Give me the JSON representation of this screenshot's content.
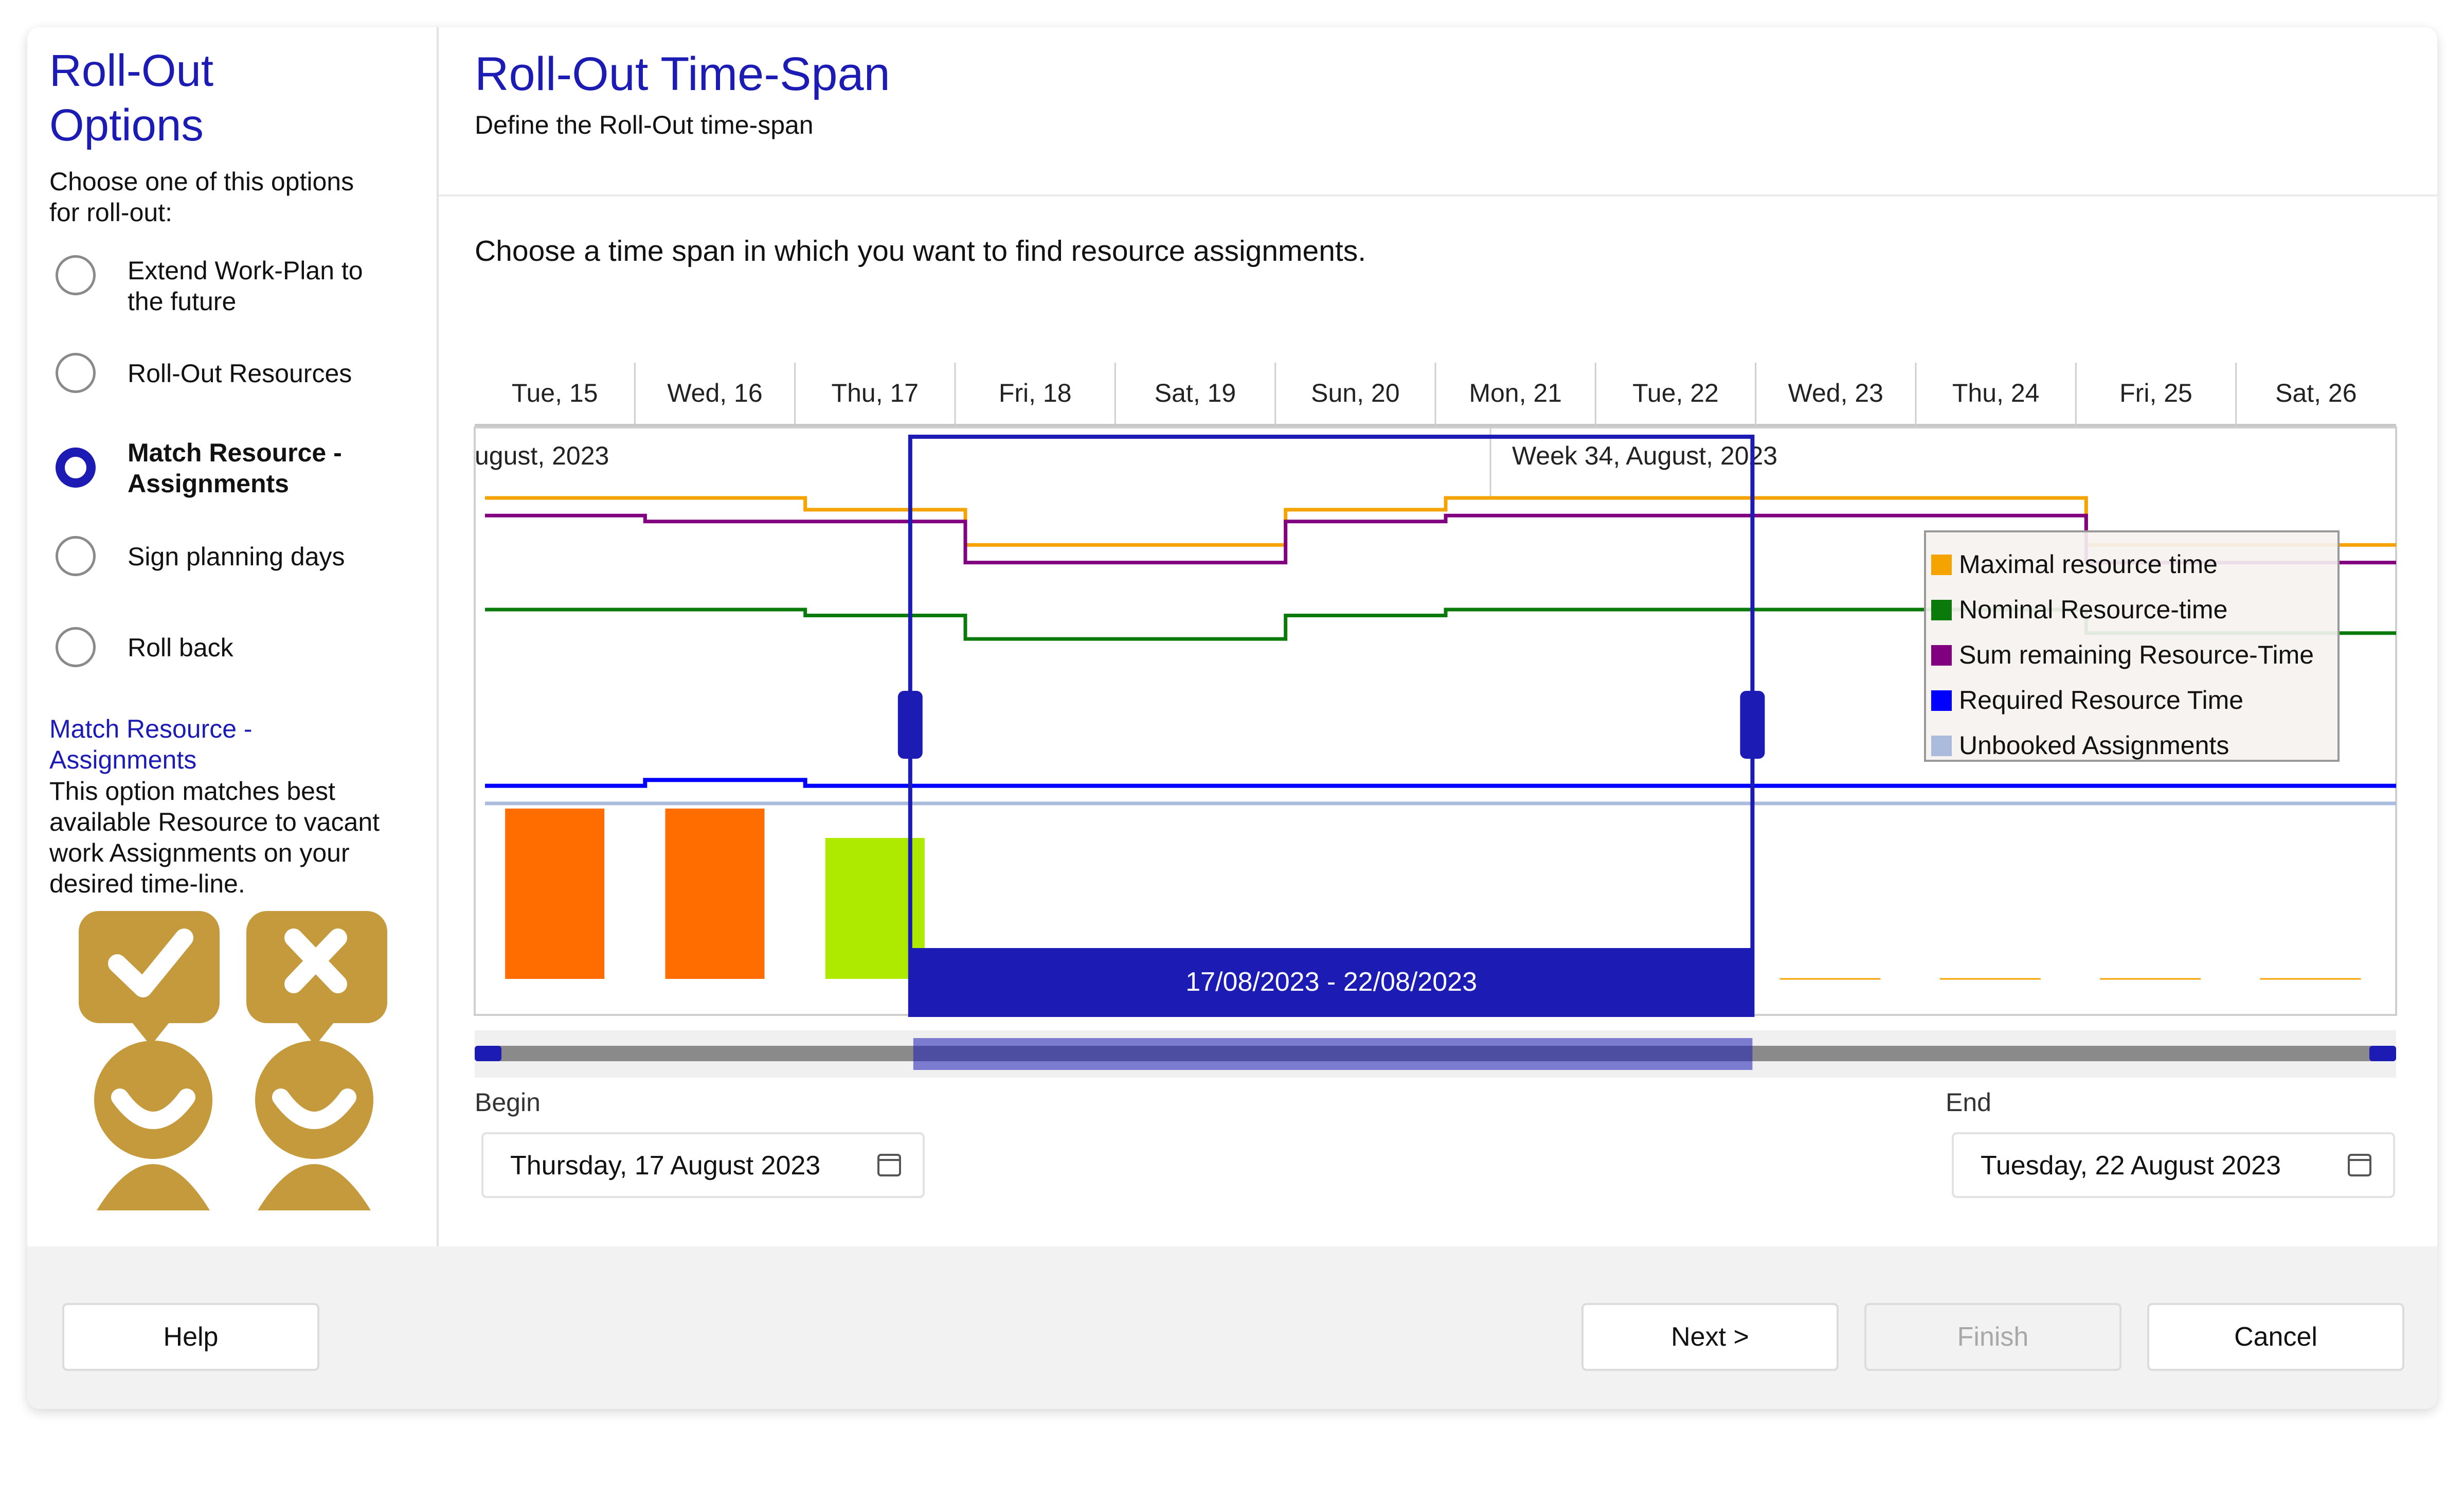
{
  "left_panel": {
    "title_line1": "Roll-Out",
    "title_line2": "Options",
    "subtitle_line1": "Choose one of this options",
    "subtitle_line2": "for roll-out:",
    "options": [
      {
        "line1": "Extend Work-Plan to",
        "line2": "the future",
        "selected": false
      },
      {
        "line1": "Roll-Out Resources",
        "line2": "",
        "selected": false
      },
      {
        "line1": "Match Resource -",
        "line2": "Assignments",
        "selected": true
      },
      {
        "line1": "Sign planning days",
        "line2": "",
        "selected": false
      },
      {
        "line1": "Roll back",
        "line2": "",
        "selected": false
      }
    ],
    "description_title_line1": "Match Resource -",
    "description_title_line2": "Assignments",
    "description_lines": [
      "This option matches best",
      "available Resource to vacant",
      "work Assignments on your",
      "desired time-line."
    ],
    "illustration_icons": [
      "check-bubble-icon",
      "cross-bubble-icon",
      "person-icon",
      "person-icon"
    ],
    "illustration_color": "#c49a3c"
  },
  "main": {
    "title": "Roll-Out Time-Span",
    "subtitle": "Define the Roll-Out time-span",
    "instruction": "Choose a time span in which you want to find resource assignments.",
    "begin_label": "Begin",
    "begin_value": "Thursday, 17 August 2023",
    "end_label": "End",
    "end_value": "Tuesday, 22 August 2023",
    "calendar_icon": "calendar-icon"
  },
  "footer": {
    "help": "Help",
    "next": "Next >",
    "finish": "Finish",
    "cancel": "Cancel"
  },
  "colors": {
    "accent": "#1c1cb5",
    "maximal": "#f5a300",
    "nominal": "#0a7a0a",
    "sum_remaining": "#800080",
    "required": "#0000ff",
    "unbooked": "#aabbdd",
    "bar_orange": "#ff6c00",
    "bar_green": "#aeea00"
  },
  "chart_data": {
    "type": "line",
    "day_labels": [
      "Tue, 15",
      "Wed, 16",
      "Thu, 17",
      "Fri, 18",
      "Sat, 19",
      "Sun, 20",
      "Mon, 21",
      "Tue, 22",
      "Wed, 23",
      "Thu, 24",
      "Fri, 25",
      "Sat, 26"
    ],
    "week_labels": [
      "ugust, 2023",
      "Week 34, August, 2023"
    ],
    "selection_label": "17/08/2023 - 22/08/2023",
    "selection_start_day": 2,
    "selection_end_day": 8,
    "y_axis": "relative level (0-100)",
    "series": [
      {
        "name": "Maximal resource time",
        "values": [
          88,
          88,
          86,
          80,
          80,
          86,
          88,
          88,
          88,
          88,
          80,
          80
        ]
      },
      {
        "name": "Nominal Resource-time",
        "values": [
          69,
          69,
          68,
          64,
          64,
          68,
          69,
          69,
          69,
          69,
          65,
          65
        ]
      },
      {
        "name": "Sum remaining Resource-Time",
        "values": [
          85,
          84,
          84,
          77,
          77,
          84,
          85,
          85,
          85,
          85,
          77,
          77
        ]
      },
      {
        "name": "Required Resource Time",
        "values": [
          39,
          40,
          39,
          39,
          39,
          39,
          39,
          39,
          39,
          39,
          39,
          39
        ]
      },
      {
        "name": "Unbooked Assignments",
        "values": [
          36,
          36,
          36,
          36,
          36,
          36,
          36,
          36,
          36,
          36,
          36,
          36
        ]
      }
    ],
    "bars": [
      {
        "day": 0,
        "value": 29,
        "kind": "orange"
      },
      {
        "day": 1,
        "value": 29,
        "kind": "orange"
      },
      {
        "day": 2,
        "value": 24,
        "kind": "green"
      }
    ],
    "legend": [
      "Maximal resource time",
      "Nominal Resource-time",
      "Sum remaining Resource-Time",
      "Required Resource Time",
      "Unbooked Assignments"
    ],
    "legend_position": "top-right"
  }
}
